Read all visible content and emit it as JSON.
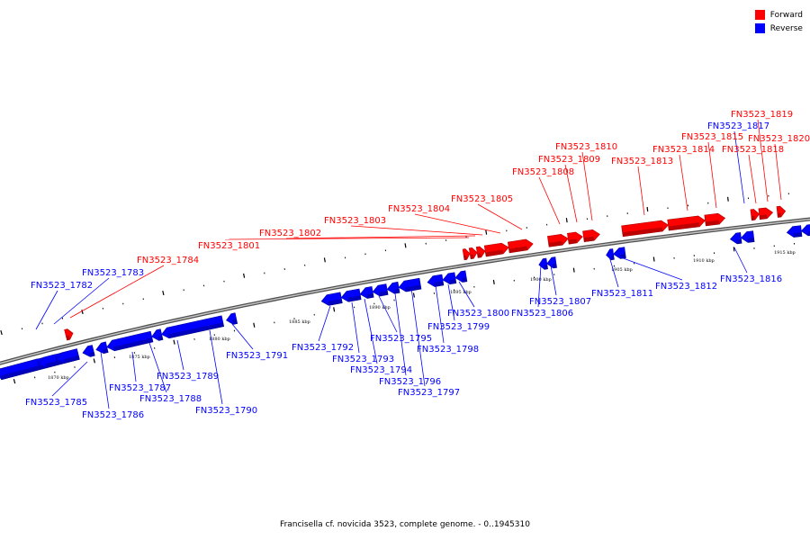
{
  "title": "Francisella cf. novicida 3523, complete genome. - 0..1945310",
  "legend": [
    {
      "label": "Forward",
      "color": "#ff0000"
    },
    {
      "label": "Reverse",
      "color": "#0000ff"
    }
  ],
  "colors": {
    "forward": "#ff0000",
    "reverse": "#0000ff",
    "backbone": "#808080"
  },
  "tick_labels": [
    "1870 kbp",
    "1875 kbp",
    "1880 kbp",
    "1885 kbp",
    "1890 kbp",
    "1895 kbp",
    "1900 kbp",
    "1905 kbp",
    "1910 kbp",
    "1915 kbp"
  ],
  "genes": [
    {
      "id": "FN3523_1782",
      "strand": "reverse"
    },
    {
      "id": "FN3523_1783",
      "strand": "reverse"
    },
    {
      "id": "FN3523_1784",
      "strand": "forward"
    },
    {
      "id": "FN3523_1785",
      "strand": "reverse"
    },
    {
      "id": "FN3523_1786",
      "strand": "reverse"
    },
    {
      "id": "FN3523_1787",
      "strand": "reverse"
    },
    {
      "id": "FN3523_1788",
      "strand": "reverse"
    },
    {
      "id": "FN3523_1789",
      "strand": "reverse"
    },
    {
      "id": "FN3523_1790",
      "strand": "reverse"
    },
    {
      "id": "FN3523_1791",
      "strand": "reverse"
    },
    {
      "id": "FN3523_1792",
      "strand": "reverse"
    },
    {
      "id": "FN3523_1793",
      "strand": "reverse"
    },
    {
      "id": "FN3523_1794",
      "strand": "reverse"
    },
    {
      "id": "FN3523_1795",
      "strand": "reverse"
    },
    {
      "id": "FN3523_1796",
      "strand": "reverse"
    },
    {
      "id": "FN3523_1797",
      "strand": "reverse"
    },
    {
      "id": "FN3523_1798",
      "strand": "reverse"
    },
    {
      "id": "FN3523_1799",
      "strand": "reverse"
    },
    {
      "id": "FN3523_1800",
      "strand": "reverse"
    },
    {
      "id": "FN3523_1801",
      "strand": "forward"
    },
    {
      "id": "FN3523_1802",
      "strand": "forward"
    },
    {
      "id": "FN3523_1803",
      "strand": "forward"
    },
    {
      "id": "FN3523_1804",
      "strand": "forward"
    },
    {
      "id": "FN3523_1805",
      "strand": "forward"
    },
    {
      "id": "FN3523_1806",
      "strand": "reverse"
    },
    {
      "id": "FN3523_1807",
      "strand": "reverse"
    },
    {
      "id": "FN3523_1808",
      "strand": "forward"
    },
    {
      "id": "FN3523_1809",
      "strand": "forward"
    },
    {
      "id": "FN3523_1810",
      "strand": "forward"
    },
    {
      "id": "FN3523_1811",
      "strand": "reverse"
    },
    {
      "id": "FN3523_1812",
      "strand": "reverse"
    },
    {
      "id": "FN3523_1813",
      "strand": "forward"
    },
    {
      "id": "FN3523_1814",
      "strand": "forward"
    },
    {
      "id": "FN3523_1815",
      "strand": "forward"
    },
    {
      "id": "FN3523_1816",
      "strand": "reverse"
    },
    {
      "id": "FN3523_1817",
      "strand": "reverse"
    },
    {
      "id": "FN3523_1818",
      "strand": "forward"
    },
    {
      "id": "FN3523_1819",
      "strand": "forward"
    },
    {
      "id": "FN3523_1820",
      "strand": "forward"
    }
  ]
}
